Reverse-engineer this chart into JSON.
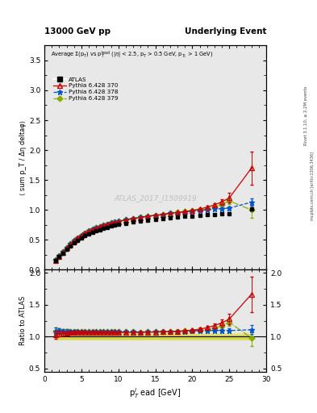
{
  "title_left": "13000 GeV pp",
  "title_right": "Underlying Event",
  "watermark": "ATLAS_2017_I1509919",
  "right_label_top": "Rivet 3.1.10, ≥ 2.2M events",
  "right_label_bot": "mcplots.cern.ch [arXiv:1306.3436]",
  "ylabel_main": "⟨ sum p_T / Δη deltaφ⟩",
  "ylabel_ratio": "Ratio to ATLAS",
  "xlabel": "p$_T^l$ ead [GeV]",
  "atlas_x": [
    1.5,
    2.0,
    2.5,
    3.0,
    3.5,
    4.0,
    4.5,
    5.0,
    5.5,
    6.0,
    6.5,
    7.0,
    7.5,
    8.0,
    8.5,
    9.0,
    9.5,
    10.0,
    11.0,
    12.0,
    13.0,
    14.0,
    15.0,
    16.0,
    17.0,
    18.0,
    19.0,
    20.0,
    21.0,
    22.0,
    23.0,
    24.0,
    25.0,
    28.0
  ],
  "atlas_y": [
    0.155,
    0.215,
    0.28,
    0.345,
    0.4,
    0.45,
    0.495,
    0.535,
    0.568,
    0.6,
    0.625,
    0.65,
    0.672,
    0.692,
    0.71,
    0.727,
    0.742,
    0.756,
    0.78,
    0.8,
    0.818,
    0.834,
    0.848,
    0.86,
    0.872,
    0.882,
    0.892,
    0.9,
    0.908,
    0.916,
    0.924,
    0.932,
    0.94,
    1.02
  ],
  "atlas_yerr": [
    0.008,
    0.008,
    0.008,
    0.008,
    0.008,
    0.008,
    0.008,
    0.008,
    0.008,
    0.008,
    0.008,
    0.008,
    0.008,
    0.008,
    0.008,
    0.008,
    0.008,
    0.008,
    0.008,
    0.008,
    0.008,
    0.008,
    0.008,
    0.01,
    0.01,
    0.01,
    0.01,
    0.012,
    0.012,
    0.012,
    0.014,
    0.016,
    0.018,
    0.03
  ],
  "py370_x": [
    1.5,
    2.0,
    2.5,
    3.0,
    3.5,
    4.0,
    4.5,
    5.0,
    5.5,
    6.0,
    6.5,
    7.0,
    7.5,
    8.0,
    8.5,
    9.0,
    9.5,
    10.0,
    11.0,
    12.0,
    13.0,
    14.0,
    15.0,
    16.0,
    17.0,
    18.0,
    19.0,
    20.0,
    21.0,
    22.0,
    23.0,
    24.0,
    25.0,
    28.0
  ],
  "py370_y": [
    0.16,
    0.225,
    0.295,
    0.365,
    0.425,
    0.48,
    0.53,
    0.572,
    0.608,
    0.642,
    0.67,
    0.695,
    0.718,
    0.74,
    0.758,
    0.776,
    0.792,
    0.806,
    0.832,
    0.854,
    0.874,
    0.892,
    0.91,
    0.926,
    0.942,
    0.958,
    0.974,
    0.992,
    1.015,
    1.045,
    1.085,
    1.135,
    1.2,
    1.7
  ],
  "py370_yerr": [
    0.005,
    0.005,
    0.005,
    0.005,
    0.005,
    0.005,
    0.005,
    0.005,
    0.005,
    0.005,
    0.005,
    0.005,
    0.005,
    0.005,
    0.005,
    0.005,
    0.005,
    0.005,
    0.005,
    0.005,
    0.005,
    0.005,
    0.005,
    0.005,
    0.005,
    0.005,
    0.008,
    0.01,
    0.015,
    0.02,
    0.03,
    0.05,
    0.08,
    0.28
  ],
  "py378_x": [
    1.5,
    2.0,
    2.5,
    3.0,
    3.5,
    4.0,
    4.5,
    5.0,
    5.5,
    6.0,
    6.5,
    7.0,
    7.5,
    8.0,
    8.5,
    9.0,
    9.5,
    10.0,
    11.0,
    12.0,
    13.0,
    14.0,
    15.0,
    16.0,
    17.0,
    18.0,
    19.0,
    20.0,
    21.0,
    22.0,
    23.0,
    24.0,
    25.0,
    28.0
  ],
  "py378_y": [
    0.168,
    0.234,
    0.304,
    0.374,
    0.434,
    0.488,
    0.537,
    0.578,
    0.614,
    0.648,
    0.676,
    0.702,
    0.725,
    0.746,
    0.764,
    0.782,
    0.798,
    0.812,
    0.838,
    0.86,
    0.878,
    0.896,
    0.912,
    0.928,
    0.943,
    0.956,
    0.968,
    0.98,
    0.991,
    1.002,
    1.012,
    1.022,
    1.03,
    1.13
  ],
  "py378_yerr": [
    0.005,
    0.005,
    0.005,
    0.005,
    0.005,
    0.005,
    0.005,
    0.005,
    0.005,
    0.005,
    0.005,
    0.005,
    0.005,
    0.005,
    0.005,
    0.005,
    0.005,
    0.005,
    0.005,
    0.005,
    0.005,
    0.005,
    0.005,
    0.005,
    0.005,
    0.005,
    0.005,
    0.006,
    0.008,
    0.01,
    0.012,
    0.018,
    0.022,
    0.065
  ],
  "py379_x": [
    1.5,
    2.0,
    2.5,
    3.0,
    3.5,
    4.0,
    4.5,
    5.0,
    5.5,
    6.0,
    6.5,
    7.0,
    7.5,
    8.0,
    8.5,
    9.0,
    9.5,
    10.0,
    11.0,
    12.0,
    13.0,
    14.0,
    15.0,
    16.0,
    17.0,
    18.0,
    19.0,
    20.0,
    21.0,
    22.0,
    23.0,
    24.0,
    25.0,
    28.0
  ],
  "py379_y": [
    0.168,
    0.234,
    0.304,
    0.374,
    0.434,
    0.488,
    0.537,
    0.578,
    0.614,
    0.648,
    0.676,
    0.702,
    0.725,
    0.746,
    0.764,
    0.782,
    0.798,
    0.812,
    0.838,
    0.86,
    0.878,
    0.896,
    0.912,
    0.928,
    0.944,
    0.958,
    0.97,
    0.984,
    1.0,
    1.018,
    1.048,
    1.09,
    1.15,
    1.0
  ],
  "py379_yerr": [
    0.005,
    0.005,
    0.005,
    0.005,
    0.005,
    0.005,
    0.005,
    0.005,
    0.005,
    0.005,
    0.005,
    0.005,
    0.005,
    0.005,
    0.005,
    0.005,
    0.005,
    0.005,
    0.005,
    0.005,
    0.005,
    0.005,
    0.005,
    0.005,
    0.005,
    0.005,
    0.005,
    0.006,
    0.008,
    0.01,
    0.015,
    0.025,
    0.05,
    0.13
  ],
  "color_atlas": "#000000",
  "color_py370": "#cc0000",
  "color_py378": "#0055cc",
  "color_py379": "#88aa00",
  "main_ylim": [
    0.0,
    3.75
  ],
  "main_yticks": [
    0.0,
    0.5,
    1.0,
    1.5,
    2.0,
    2.5,
    3.0,
    3.5
  ],
  "ratio_ylim": [
    0.45,
    2.05
  ],
  "ratio_yticks": [
    0.5,
    1.0,
    1.5,
    2.0
  ],
  "xlim": [
    0,
    30
  ],
  "bg_color": "#e8e8e8"
}
